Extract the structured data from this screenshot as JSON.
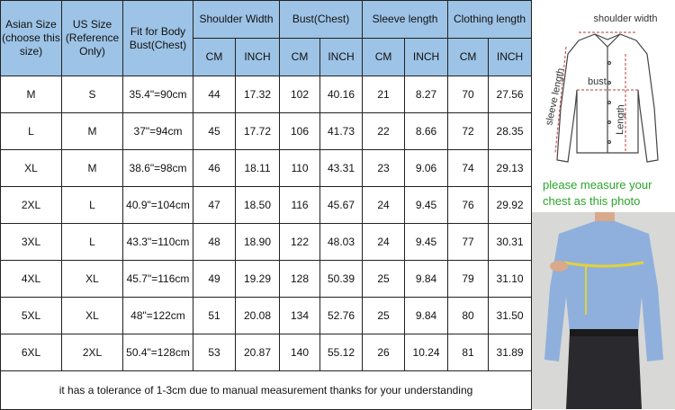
{
  "table": {
    "header": [
      "Asian Size (choose this size)",
      "US Size (Reference Only)",
      "Fit for Body Bust(Chest)",
      "Shoulder Width",
      "Bust(Chest)",
      "Sleeve length",
      "Clothing length"
    ],
    "subheader": [
      "CM",
      "INCH",
      "CM",
      "INCH",
      "CM",
      "INCH",
      "CM",
      "INCH"
    ],
    "rows": [
      [
        "M",
        "S",
        "35.4\"=90cm",
        "44",
        "17.32",
        "102",
        "40.16",
        "21",
        "8.27",
        "70",
        "27.56"
      ],
      [
        "L",
        "M",
        "37\"=94cm",
        "45",
        "17.72",
        "106",
        "41.73",
        "22",
        "8.66",
        "72",
        "28.35"
      ],
      [
        "XL",
        "M",
        "38.6\"=98cm",
        "46",
        "18.11",
        "110",
        "43.31",
        "23",
        "9.06",
        "74",
        "29.13"
      ],
      [
        "2XL",
        "L",
        "40.9\"=104cm",
        "47",
        "18.50",
        "116",
        "45.67",
        "24",
        "9.45",
        "76",
        "29.92"
      ],
      [
        "3XL",
        "L",
        "43.3\"=110cm",
        "48",
        "18.90",
        "122",
        "48.03",
        "24",
        "9.45",
        "77",
        "30.31"
      ],
      [
        "4XL",
        "XL",
        "45.7\"=116cm",
        "49",
        "19.29",
        "128",
        "50.39",
        "25",
        "9.84",
        "79",
        "31.10"
      ],
      [
        "5XL",
        "XL",
        "48\"=122cm",
        "51",
        "20.08",
        "134",
        "52.76",
        "25",
        "9.84",
        "80",
        "31.50"
      ],
      [
        "6XL",
        "2XL",
        "50.4\"=128cm",
        "53",
        "20.87",
        "140",
        "55.12",
        "26",
        "10.24",
        "81",
        "31.89"
      ]
    ],
    "footer": "it has a tolerance of 1-3cm due to manual measurement thanks for your understanding"
  },
  "illustration": {
    "shoulder_label": "shoulder width",
    "bust_label": "bust",
    "sleeve_label": "sleeve length",
    "length_label": "Length",
    "note_line_1": "please measure your",
    "note_line_2": "chest as this photo"
  }
}
